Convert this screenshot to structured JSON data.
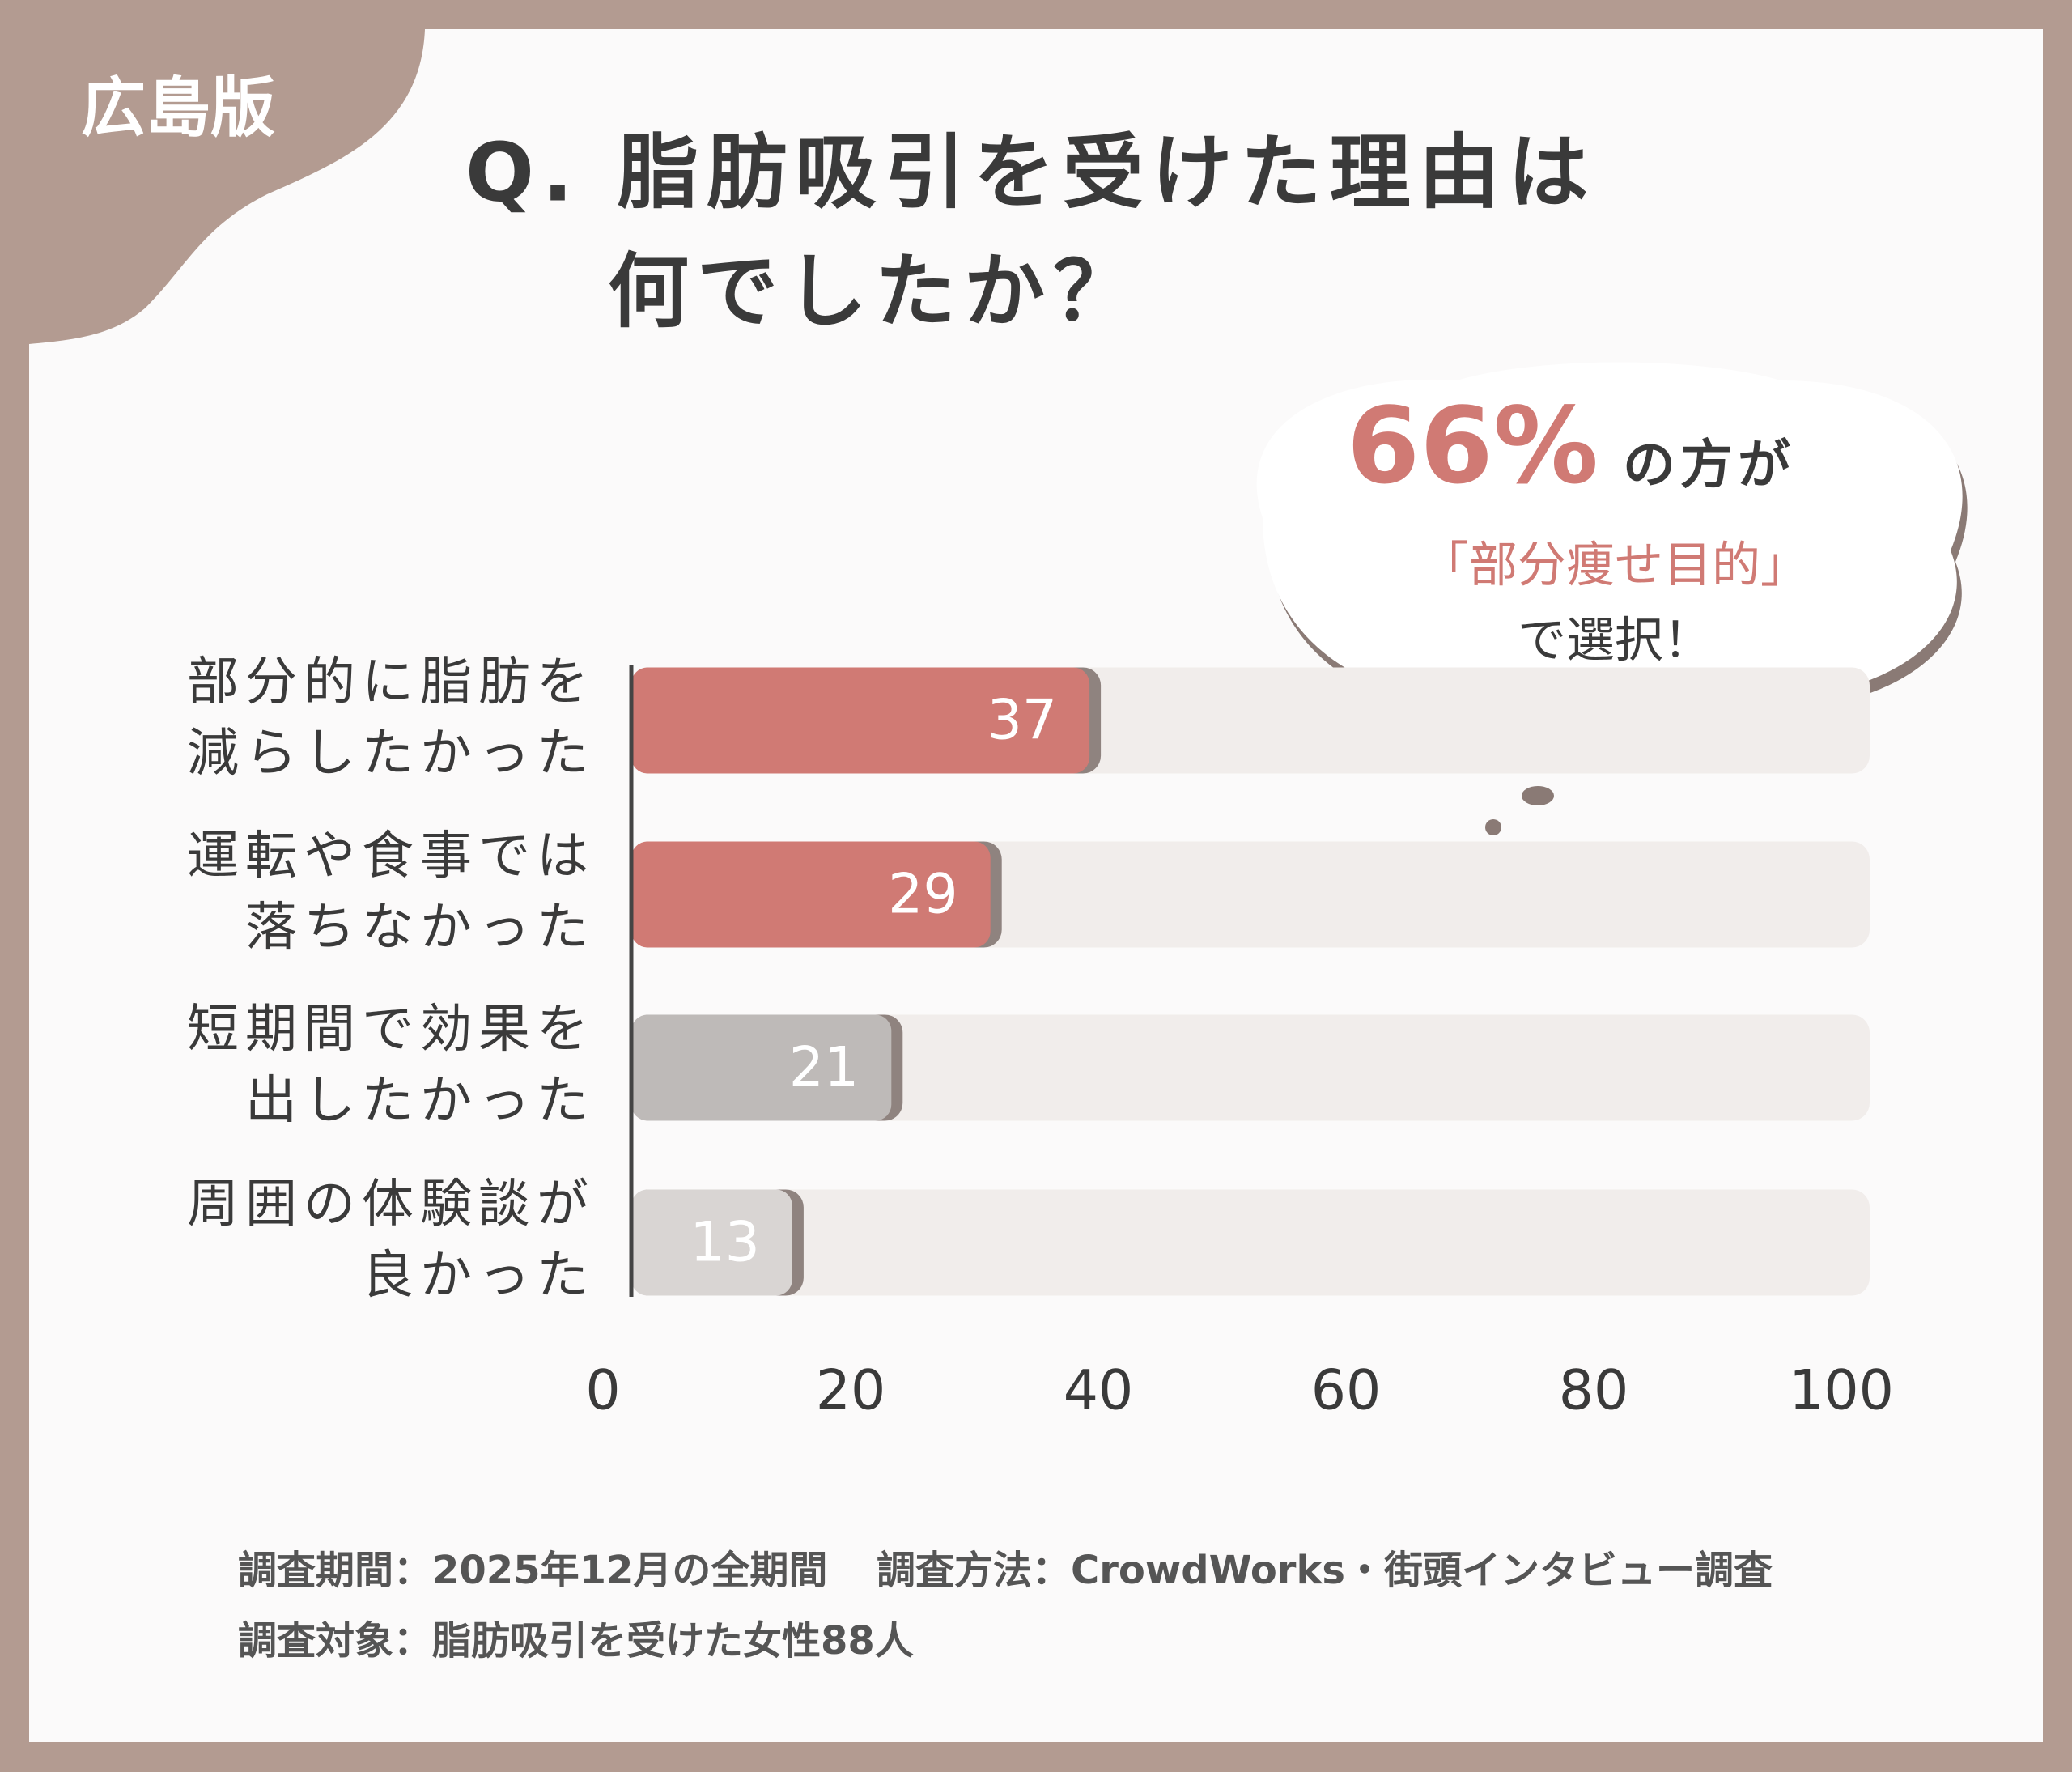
{
  "badge": "広島版",
  "chart_data": {
    "type": "bar",
    "orientation": "horizontal",
    "title": [
      "Q. 脂肪吸引を受けた理由は",
      "何でしたか？"
    ],
    "categories": [
      "部分的に脂肪を\n減らしたかった",
      "運転や食事では\n落ちなかった",
      "短期間で効果を\n出したかった",
      "周囲の体験談が\n良かった"
    ],
    "values": [
      37,
      29,
      21,
      13
    ],
    "colors": [
      "#d07a74",
      "#d07a74",
      "#bebab8",
      "#d9d5d3"
    ],
    "track_color": "#f1edeb",
    "xlim": [
      0,
      100
    ],
    "xticks": [
      0,
      20,
      40,
      60,
      80,
      100
    ],
    "annotation": {
      "percent": "66%",
      "text1": "の方が",
      "highlight": "「部分痩せ目的」",
      "text2": "で選択！"
    }
  },
  "footer": [
    "調査期間：2025年12月の全期間",
    "調査方法：CrowdWorks・街頭インタビュー調査",
    "調査対象：脂肪吸引を受けた女性88人"
  ]
}
